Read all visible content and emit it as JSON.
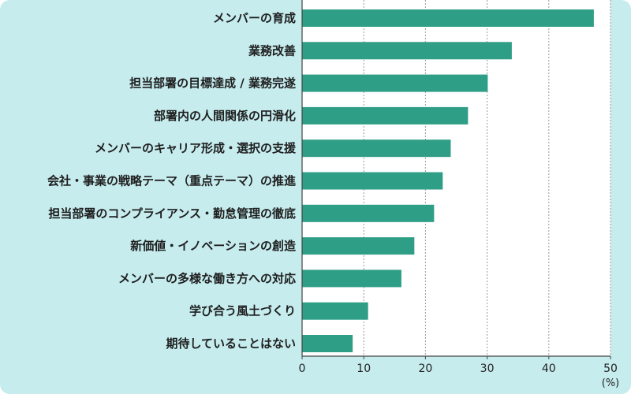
{
  "colors": {
    "background": "#c6ecee",
    "plot_background": "#ffffff",
    "bar": "#2f9e87",
    "grid": "#9a9a9a",
    "axis": "#444444"
  },
  "chart_data": {
    "type": "bar",
    "orientation": "horizontal",
    "title": "",
    "xlabel": "",
    "ylabel": "",
    "unit_label": "(%)",
    "xlim": [
      0,
      50
    ],
    "xticks": [
      0,
      10,
      20,
      30,
      40,
      50
    ],
    "grid": true,
    "categories": [
      "メンバーの育成",
      "業務改善",
      "担当部署の目標達成 / 業務完遂",
      "部署内の人間関係の円滑化",
      "メンバーのキャリア形成・選択の支援",
      "会社・事業の戦略テーマ（重点テーマ）の推進",
      "担当部署のコンプライアンス・勤怠管理の徹底",
      "新価値・イノベーションの創造",
      "メンバーの多様な働き方への対応",
      "学び合う風土づくり",
      "期待していることはない"
    ],
    "values": [
      47.3,
      34.0,
      30.1,
      26.9,
      24.1,
      22.8,
      21.4,
      18.2,
      16.1,
      10.7,
      8.2
    ]
  }
}
